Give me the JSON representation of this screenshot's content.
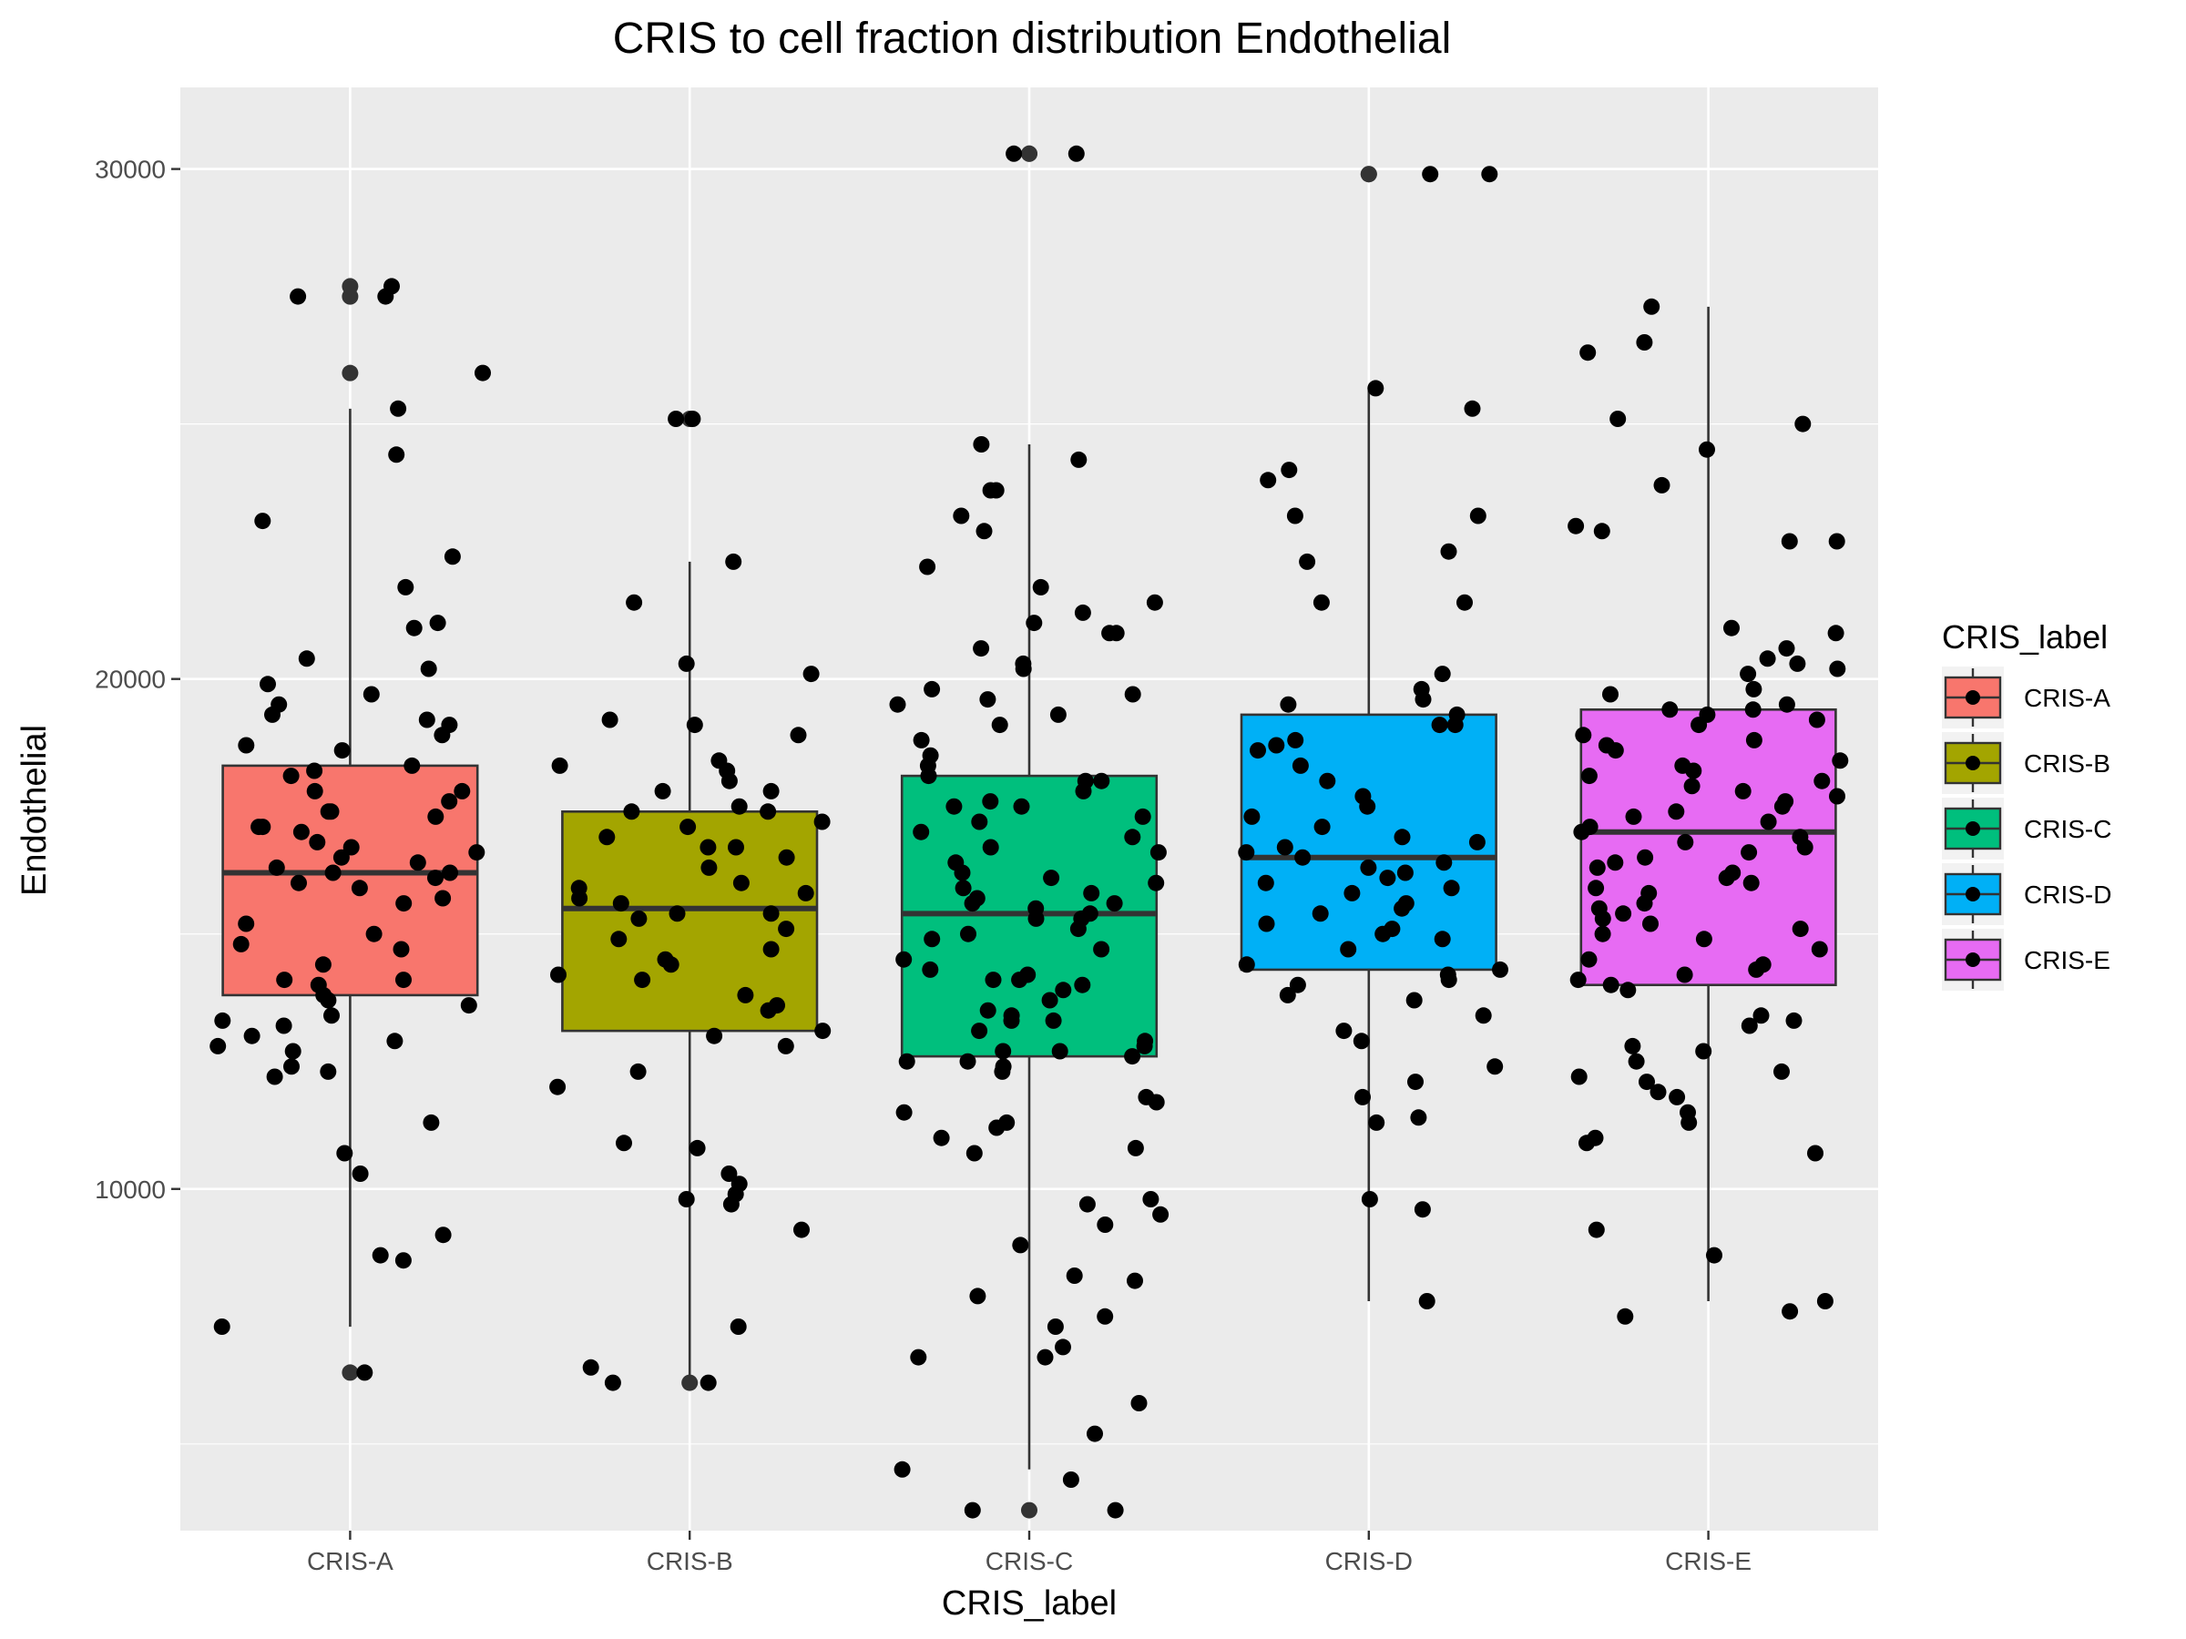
{
  "chart_data": {
    "type": "box",
    "title": "CRIS to cell fraction distribution Endothelial",
    "xlabel": "CRIS_label",
    "ylabel": "Endothelial",
    "ylim": [
      3300,
      31600
    ],
    "yticks": [
      10000,
      20000,
      30000
    ],
    "categories": [
      "CRIS-A",
      "CRIS-B",
      "CRIS-C",
      "CRIS-D",
      "CRIS-E"
    ],
    "colors": [
      "#F8766D",
      "#A3A500",
      "#00BF7D",
      "#00B0F6",
      "#E76BF3"
    ],
    "boxes": [
      {
        "label": "CRIS-A",
        "whisker_low": 7300,
        "q1": 13800,
        "median": 16200,
        "q3": 18300,
        "whisker_high": 25300,
        "outliers": [
          6400,
          26000,
          27500,
          27700
        ]
      },
      {
        "label": "CRIS-B",
        "whisker_low": 6200,
        "q1": 13100,
        "median": 15500,
        "q3": 17400,
        "whisker_high": 22300,
        "outliers": [
          6200,
          25100
        ]
      },
      {
        "label": "CRIS-C",
        "whisker_low": 4500,
        "q1": 12600,
        "median": 15400,
        "q3": 18100,
        "whisker_high": 24600,
        "outliers": [
          3700,
          30300,
          30300
        ]
      },
      {
        "label": "CRIS-D",
        "whisker_low": 7800,
        "q1": 14300,
        "median": 16500,
        "q3": 19300,
        "whisker_high": 25700,
        "outliers": [
          29900,
          29900
        ]
      },
      {
        "label": "CRIS-E",
        "whisker_low": 7800,
        "q1": 14000,
        "median": 17000,
        "q3": 19400,
        "whisker_high": 27300,
        "outliers": []
      }
    ],
    "points": [
      {
        "group": "CRIS-A",
        "values": [
          27700,
          27500,
          27500,
          26000,
          25300,
          24400,
          23100,
          22400,
          21800,
          21100,
          21000,
          20400,
          20200,
          19900,
          19700,
          19500,
          19300,
          19200,
          19100,
          18900,
          18700,
          18600,
          18300,
          18200,
          18100,
          17800,
          17800,
          17600,
          17400,
          17400,
          17300,
          17100,
          17100,
          17000,
          16800,
          16700,
          16600,
          16500,
          16400,
          16300,
          16200,
          16200,
          16100,
          16000,
          15900,
          15700,
          15600,
          15200,
          15000,
          14800,
          14700,
          14400,
          14100,
          14100,
          14000,
          13800,
          13700,
          13600,
          13400,
          13300,
          13200,
          13000,
          12900,
          12800,
          12700,
          12400,
          12300,
          12200,
          11300,
          10700,
          10300,
          9100,
          8700,
          8600,
          7300,
          6400
        ]
      },
      {
        "group": "CRIS-B",
        "values": [
          25100,
          25100,
          22300,
          21500,
          20300,
          20100,
          19200,
          19100,
          18900,
          18400,
          18300,
          18200,
          18000,
          17800,
          17800,
          17500,
          17400,
          17400,
          17200,
          17100,
          16900,
          16700,
          16700,
          16500,
          16300,
          16000,
          15900,
          15800,
          15700,
          15600,
          15400,
          15400,
          15300,
          15100,
          14900,
          14700,
          14500,
          14400,
          14200,
          14100,
          13800,
          13600,
          13500,
          13100,
          13000,
          12800,
          12300,
          12000,
          10900,
          10800,
          10300,
          10100,
          9900,
          9800,
          9700,
          9200,
          7300,
          6500,
          6200,
          6200
        ]
      },
      {
        "group": "CRIS-C",
        "values": [
          30300,
          30300,
          24600,
          24300,
          23700,
          23700,
          23200,
          22900,
          22200,
          21800,
          21500,
          21300,
          21100,
          20900,
          20900,
          20600,
          20300,
          20200,
          19800,
          19700,
          19600,
          19500,
          19300,
          19100,
          18800,
          18500,
          18300,
          18100,
          18000,
          18000,
          17800,
          17600,
          17500,
          17500,
          17300,
          17200,
          17000,
          16900,
          16700,
          16600,
          16400,
          16200,
          16100,
          16000,
          15900,
          15800,
          15700,
          15600,
          15600,
          15500,
          15400,
          15300,
          15300,
          15100,
          15000,
          14900,
          14700,
          14500,
          14300,
          14200,
          14100,
          14100,
          14000,
          13900,
          13700,
          13500,
          13400,
          13300,
          13300,
          13100,
          12900,
          12800,
          12700,
          12700,
          12600,
          12500,
          12500,
          12400,
          12300,
          11800,
          11700,
          11500,
          11300,
          11200,
          11000,
          10800,
          10700,
          9800,
          9700,
          9500,
          9300,
          8900,
          8300,
          8200,
          7900,
          7500,
          7300,
          6900,
          6700,
          6700,
          5800,
          5200,
          4500,
          4300,
          3700,
          3700
        ]
      },
      {
        "group": "CRIS-D",
        "values": [
          29900,
          29900,
          25700,
          25300,
          24100,
          23900,
          23200,
          23200,
          22500,
          22300,
          21500,
          21500,
          20100,
          19800,
          19600,
          19500,
          19300,
          19100,
          19100,
          18800,
          18700,
          18600,
          18300,
          18000,
          17700,
          17500,
          17300,
          17100,
          16900,
          16800,
          16700,
          16600,
          16500,
          16400,
          16300,
          16200,
          16100,
          16000,
          15900,
          15800,
          15600,
          15500,
          15400,
          15200,
          15100,
          15000,
          14900,
          14700,
          14400,
          14300,
          14200,
          14100,
          14000,
          13800,
          13700,
          13400,
          13100,
          12900,
          12400,
          12100,
          11800,
          11400,
          11300,
          9800,
          9600,
          7800
        ]
      },
      {
        "group": "CRIS-E",
        "values": [
          27300,
          26600,
          26400,
          25100,
          25000,
          24500,
          23800,
          23000,
          22900,
          22700,
          22700,
          21000,
          20900,
          20600,
          20400,
          20300,
          20200,
          20100,
          19800,
          19700,
          19500,
          19400,
          19400,
          19300,
          19200,
          19100,
          18900,
          18800,
          18700,
          18600,
          18400,
          18300,
          18200,
          18100,
          18000,
          17900,
          17800,
          17700,
          17600,
          17500,
          17400,
          17300,
          17200,
          17100,
          17000,
          16900,
          16800,
          16700,
          16600,
          16500,
          16400,
          16300,
          16200,
          16100,
          16000,
          15900,
          15800,
          15600,
          15500,
          15400,
          15300,
          15200,
          15100,
          15000,
          14900,
          14700,
          14500,
          14400,
          14300,
          14200,
          14100,
          14000,
          13900,
          13400,
          13300,
          13200,
          12800,
          12700,
          12500,
          12300,
          12200,
          12100,
          11900,
          11800,
          11500,
          11300,
          11000,
          10900,
          10700,
          9200,
          8700,
          7800,
          7600,
          7500
        ]
      }
    ],
    "legend": {
      "title": "CRIS_label",
      "entries": [
        "CRIS-A",
        "CRIS-B",
        "CRIS-C",
        "CRIS-D",
        "CRIS-E"
      ],
      "placement": "right"
    },
    "grid": true,
    "background": "#EBEBEB"
  }
}
